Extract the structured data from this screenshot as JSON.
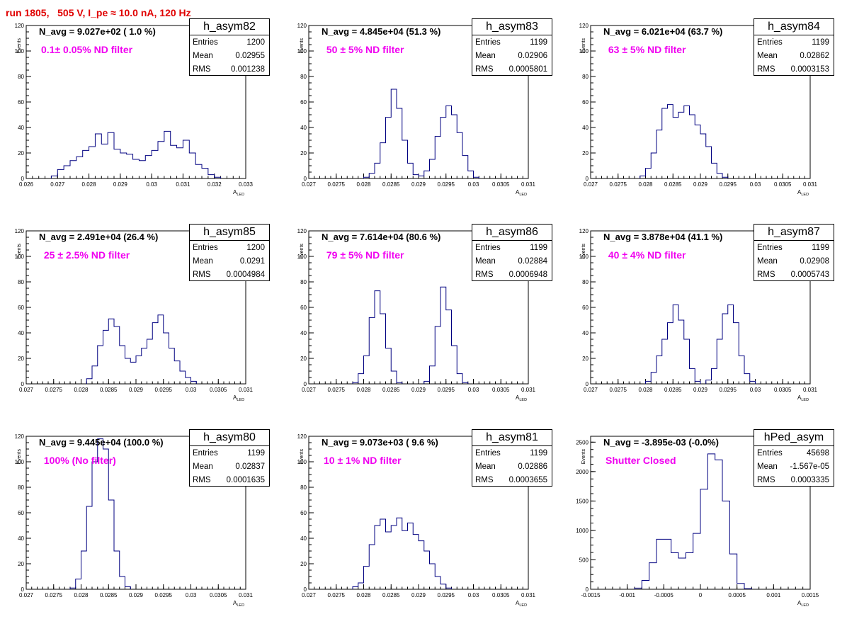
{
  "title": "run 1805,   505 V, I_pe ≈ 10.0 nA, 120 Hz",
  "ylabel": "Events",
  "xlabel_main": "A",
  "xlabel_sub": "LED",
  "stats_labels": {
    "entries": "Entries",
    "mean": "Mean",
    "rms": "RMS"
  },
  "colors": {
    "title": "#e00000",
    "annotation": "#f000f0",
    "histogram": "#000080"
  },
  "chart_data": [
    {
      "type": "bar",
      "name": "h_asym82",
      "navg": "N_avg = 9.027e+02 ( 1.0 %)",
      "filter": "0.1± 0.05% ND filter",
      "entries": "1200",
      "mean": "0.02955",
      "rms": "0.001238",
      "xlim": [
        0.026,
        0.033
      ],
      "ylim": [
        0,
        120
      ],
      "xticks": [
        "0.026",
        "0.027",
        "0.028",
        "0.029",
        "0.03",
        "0.031",
        "0.032",
        "0.033"
      ],
      "yticks": [
        "0",
        "20",
        "40",
        "60",
        "80",
        "100",
        "120"
      ],
      "ytick_values": [
        0,
        20,
        40,
        60,
        80,
        100,
        120
      ],
      "bins": [
        [
          0.0269,
          2
        ],
        [
          0.0271,
          7
        ],
        [
          0.0273,
          10
        ],
        [
          0.0275,
          14
        ],
        [
          0.0277,
          17
        ],
        [
          0.0279,
          22
        ],
        [
          0.0281,
          25
        ],
        [
          0.0283,
          35
        ],
        [
          0.0285,
          27
        ],
        [
          0.0287,
          36
        ],
        [
          0.0289,
          23
        ],
        [
          0.0291,
          20
        ],
        [
          0.0293,
          19
        ],
        [
          0.0295,
          15
        ],
        [
          0.0297,
          14
        ],
        [
          0.0299,
          18
        ],
        [
          0.0301,
          22
        ],
        [
          0.0303,
          29
        ],
        [
          0.0305,
          37
        ],
        [
          0.0307,
          26
        ],
        [
          0.0309,
          24
        ],
        [
          0.0311,
          30
        ],
        [
          0.0313,
          20
        ],
        [
          0.0315,
          11
        ],
        [
          0.0317,
          8
        ],
        [
          0.0319,
          3
        ],
        [
          0.0321,
          1
        ]
      ]
    },
    {
      "type": "bar",
      "name": "h_asym83",
      "navg": "N_avg = 4.845e+04 (51.3 %)",
      "filter": " 50 ± 5% ND filter",
      "entries": "1199",
      "mean": "0.02906",
      "rms": "0.0005801",
      "xlim": [
        0.027,
        0.031
      ],
      "ylim": [
        0,
        120
      ],
      "xticks": [
        "0.027",
        "0.0275",
        "0.028",
        "0.0285",
        "0.029",
        "0.0295",
        "0.03",
        "0.0305",
        "0.031"
      ],
      "yticks": [
        "0",
        "20",
        "40",
        "60",
        "80",
        "100",
        "120"
      ],
      "ytick_values": [
        0,
        20,
        40,
        60,
        80,
        100,
        120
      ],
      "bins": [
        [
          0.02805,
          1
        ],
        [
          0.02815,
          4
        ],
        [
          0.02825,
          12
        ],
        [
          0.02835,
          28
        ],
        [
          0.02845,
          48
        ],
        [
          0.02855,
          70
        ],
        [
          0.02865,
          55
        ],
        [
          0.02875,
          30
        ],
        [
          0.02885,
          12
        ],
        [
          0.02895,
          3
        ],
        [
          0.02905,
          2
        ],
        [
          0.02915,
          6
        ],
        [
          0.02925,
          15
        ],
        [
          0.02935,
          33
        ],
        [
          0.02945,
          48
        ],
        [
          0.02955,
          57
        ],
        [
          0.02965,
          50
        ],
        [
          0.02975,
          36
        ],
        [
          0.02985,
          18
        ],
        [
          0.02995,
          6
        ],
        [
          0.03005,
          1
        ]
      ]
    },
    {
      "type": "bar",
      "name": "h_asym84",
      "navg": "N_avg = 6.021e+04 (63.7 %)",
      "filter": " 63 ± 5% ND filter",
      "entries": "1199",
      "mean": "0.02862",
      "rms": "0.0003153",
      "xlim": [
        0.027,
        0.031
      ],
      "ylim": [
        0,
        120
      ],
      "xticks": [
        "0.027",
        "0.0275",
        "0.028",
        "0.0285",
        "0.029",
        "0.0295",
        "0.03",
        "0.0305",
        "0.031"
      ],
      "yticks": [
        "0",
        "20",
        "40",
        "60",
        "80",
        "100",
        "120"
      ],
      "ytick_values": [
        0,
        20,
        40,
        60,
        80,
        100,
        120
      ],
      "bins": [
        [
          0.02795,
          2
        ],
        [
          0.02805,
          8
        ],
        [
          0.02815,
          20
        ],
        [
          0.02825,
          38
        ],
        [
          0.02835,
          55
        ],
        [
          0.02845,
          58
        ],
        [
          0.02855,
          48
        ],
        [
          0.02865,
          52
        ],
        [
          0.02875,
          57
        ],
        [
          0.02885,
          50
        ],
        [
          0.02895,
          42
        ],
        [
          0.02905,
          35
        ],
        [
          0.02915,
          25
        ],
        [
          0.02925,
          12
        ],
        [
          0.02935,
          4
        ],
        [
          0.02945,
          1
        ]
      ]
    },
    {
      "type": "bar",
      "name": "h_asym85",
      "navg": "N_avg = 2.491e+04 (26.4 %)",
      "filter": " 25 ± 2.5% ND filter",
      "entries": "1200",
      "mean": "0.0291",
      "rms": "0.0004984",
      "xlim": [
        0.027,
        0.031
      ],
      "ylim": [
        0,
        120
      ],
      "xticks": [
        "0.027",
        "0.0275",
        "0.028",
        "0.0285",
        "0.029",
        "0.0295",
        "0.03",
        "0.0305",
        "0.031"
      ],
      "yticks": [
        "0",
        "20",
        "40",
        "60",
        "80",
        "100",
        "120"
      ],
      "ytick_values": [
        0,
        20,
        40,
        60,
        80,
        100,
        120
      ],
      "bins": [
        [
          0.02815,
          4
        ],
        [
          0.02825,
          14
        ],
        [
          0.02835,
          30
        ],
        [
          0.02845,
          42
        ],
        [
          0.02855,
          51
        ],
        [
          0.02865,
          45
        ],
        [
          0.02875,
          30
        ],
        [
          0.02885,
          20
        ],
        [
          0.02895,
          17
        ],
        [
          0.02905,
          22
        ],
        [
          0.02915,
          28
        ],
        [
          0.02925,
          35
        ],
        [
          0.02935,
          48
        ],
        [
          0.02945,
          54
        ],
        [
          0.02955,
          40
        ],
        [
          0.02965,
          28
        ],
        [
          0.02975,
          18
        ],
        [
          0.02985,
          10
        ],
        [
          0.02995,
          5
        ],
        [
          0.03005,
          2
        ]
      ]
    },
    {
      "type": "bar",
      "name": "h_asym86",
      "navg": "N_avg = 7.614e+04 (80.6 %)",
      "filter": " 79 ± 5% ND filter",
      "entries": "1199",
      "mean": "0.02884",
      "rms": "0.0006948",
      "xlim": [
        0.027,
        0.031
      ],
      "ylim": [
        0,
        120
      ],
      "xticks": [
        "0.027",
        "0.0275",
        "0.028",
        "0.0285",
        "0.029",
        "0.0295",
        "0.03",
        "0.0305",
        "0.031"
      ],
      "yticks": [
        "0",
        "20",
        "40",
        "60",
        "80",
        "100",
        "120"
      ],
      "ytick_values": [
        0,
        20,
        40,
        60,
        80,
        100,
        120
      ],
      "bins": [
        [
          0.02785,
          1
        ],
        [
          0.02795,
          8
        ],
        [
          0.02805,
          22
        ],
        [
          0.02815,
          52
        ],
        [
          0.02825,
          73
        ],
        [
          0.02835,
          55
        ],
        [
          0.02845,
          28
        ],
        [
          0.02855,
          10
        ],
        [
          0.02865,
          1
        ],
        [
          0.02915,
          2
        ],
        [
          0.02925,
          14
        ],
        [
          0.02935,
          45
        ],
        [
          0.02945,
          76
        ],
        [
          0.02955,
          58
        ],
        [
          0.02965,
          30
        ],
        [
          0.02975,
          8
        ],
        [
          0.02985,
          1
        ]
      ]
    },
    {
      "type": "bar",
      "name": "h_asym87",
      "navg": "N_avg = 3.878e+04 (41.1 %)",
      "filter": " 40 ± 4% ND filter",
      "entries": "1199",
      "mean": "0.02908",
      "rms": "0.0005743",
      "xlim": [
        0.027,
        0.031
      ],
      "ylim": [
        0,
        120
      ],
      "xticks": [
        "0.027",
        "0.0275",
        "0.028",
        "0.0285",
        "0.029",
        "0.0295",
        "0.03",
        "0.0305",
        "0.031"
      ],
      "yticks": [
        "0",
        "20",
        "40",
        "60",
        "80",
        "100",
        "120"
      ],
      "ytick_values": [
        0,
        20,
        40,
        60,
        80,
        100,
        120
      ],
      "bins": [
        [
          0.02805,
          2
        ],
        [
          0.02815,
          9
        ],
        [
          0.02825,
          22
        ],
        [
          0.02835,
          35
        ],
        [
          0.02845,
          48
        ],
        [
          0.02855,
          62
        ],
        [
          0.02865,
          50
        ],
        [
          0.02875,
          35
        ],
        [
          0.02885,
          12
        ],
        [
          0.02895,
          2
        ],
        [
          0.02915,
          3
        ],
        [
          0.02925,
          12
        ],
        [
          0.02935,
          35
        ],
        [
          0.02945,
          55
        ],
        [
          0.02955,
          62
        ],
        [
          0.02965,
          48
        ],
        [
          0.02975,
          22
        ],
        [
          0.02985,
          8
        ],
        [
          0.02995,
          2
        ]
      ]
    },
    {
      "type": "bar",
      "name": "h_asym80",
      "navg": "N_avg = 9.445e+04 (100.0 %)",
      "filter": " 100% (No filter)",
      "entries": "1199",
      "mean": "0.02837",
      "rms": "0.0001635",
      "xlim": [
        0.027,
        0.031
      ],
      "ylim": [
        0,
        120
      ],
      "xticks": [
        "0.027",
        "0.0275",
        "0.028",
        "0.0285",
        "0.029",
        "0.0295",
        "0.03",
        "0.0305",
        "0.031"
      ],
      "yticks": [
        "0",
        "20",
        "40",
        "60",
        "80",
        "100",
        "120"
      ],
      "ytick_values": [
        0,
        20,
        40,
        60,
        80,
        100,
        120
      ],
      "bins": [
        [
          0.02785,
          1
        ],
        [
          0.02795,
          8
        ],
        [
          0.02805,
          30
        ],
        [
          0.02815,
          65
        ],
        [
          0.02825,
          100
        ],
        [
          0.02835,
          118
        ],
        [
          0.02845,
          110
        ],
        [
          0.02855,
          70
        ],
        [
          0.02865,
          30
        ],
        [
          0.02875,
          10
        ],
        [
          0.02885,
          2
        ]
      ]
    },
    {
      "type": "bar",
      "name": "h_asym81",
      "navg": "N_avg = 9.073e+03 ( 9.6 %)",
      "filter": "10 ± 1% ND filter",
      "entries": "1199",
      "mean": "0.02886",
      "rms": "0.0003655",
      "xlim": [
        0.027,
        0.031
      ],
      "ylim": [
        0,
        120
      ],
      "xticks": [
        "0.027",
        "0.0275",
        "0.028",
        "0.0285",
        "0.029",
        "0.0295",
        "0.03",
        "0.0305",
        "0.031"
      ],
      "yticks": [
        "0",
        "20",
        "40",
        "60",
        "80",
        "100",
        "120"
      ],
      "ytick_values": [
        0,
        20,
        40,
        60,
        80,
        100,
        120
      ],
      "bins": [
        [
          0.02785,
          2
        ],
        [
          0.02795,
          5
        ],
        [
          0.02805,
          18
        ],
        [
          0.02815,
          35
        ],
        [
          0.02825,
          50
        ],
        [
          0.02835,
          55
        ],
        [
          0.02845,
          45
        ],
        [
          0.02855,
          50
        ],
        [
          0.02865,
          56
        ],
        [
          0.02875,
          46
        ],
        [
          0.02885,
          52
        ],
        [
          0.02895,
          43
        ],
        [
          0.02905,
          38
        ],
        [
          0.02915,
          30
        ],
        [
          0.02925,
          20
        ],
        [
          0.02935,
          10
        ],
        [
          0.02945,
          4
        ],
        [
          0.02955,
          1
        ]
      ]
    },
    {
      "type": "bar",
      "name": "hPed_asym",
      "navg": "N_avg = -3.895e-03 (-0.0%)",
      "filter": "Shutter Closed",
      "entries": "45698",
      "mean": "-1.567e-05",
      "rms": "0.0003335",
      "xlim": [
        -0.0015,
        0.0015
      ],
      "ylim": [
        0,
        2600
      ],
      "xticks": [
        "-0.0015",
        "-0.001",
        "-0.0005",
        "0",
        "0.0005",
        "0.001",
        "0.0015"
      ],
      "yticks": [
        "0",
        "500",
        "1000",
        "1500",
        "2000",
        "2500"
      ],
      "ytick_values": [
        0,
        500,
        1000,
        1500,
        2000,
        2500
      ],
      "bins": [
        [
          -0.00085,
          20
        ],
        [
          -0.00075,
          150
        ],
        [
          -0.00065,
          450
        ],
        [
          -0.00055,
          850
        ],
        [
          -0.00045,
          850
        ],
        [
          -0.00035,
          620
        ],
        [
          -0.00025,
          530
        ],
        [
          -0.00015,
          620
        ],
        [
          -5e-05,
          950
        ],
        [
          5e-05,
          1700
        ],
        [
          0.00015,
          2300
        ],
        [
          0.00025,
          2200
        ],
        [
          0.00035,
          1500
        ],
        [
          0.00045,
          600
        ],
        [
          0.00055,
          100
        ],
        [
          0.00065,
          10
        ]
      ]
    }
  ]
}
